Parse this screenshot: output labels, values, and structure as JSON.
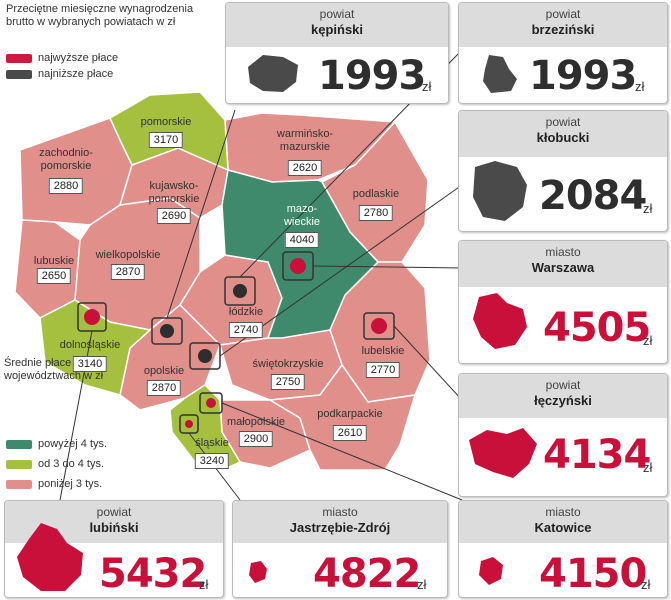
{
  "legend": {
    "title": "Przeciętne miesięczne wynagrodzenia brutto w wybranych powiatach w zł",
    "highest": "najwyższe płace",
    "lowest": "najniższe płace",
    "highest_color": "#d2183e",
    "lowest_color": "#4a4a4a"
  },
  "averages_legend": {
    "title": "Średnie płace w województwach w zł",
    "items": [
      {
        "label": "powyżej 4 tys.",
        "color": "#3f8a6c"
      },
      {
        "label": "od 3 do 4 tys.",
        "color": "#a5c03f"
      },
      {
        "label": "poniżej 3 tys.",
        "color": "#e08f8a"
      }
    ]
  },
  "voivodeships": [
    {
      "name": "pomorskie",
      "value": "3170"
    },
    {
      "name": "zachodnio-\npomorskie",
      "value": "2880"
    },
    {
      "name": "kujawsko-\npomorskie",
      "value": "2690"
    },
    {
      "name": "warmińsko-\nmazurskie",
      "value": "2620"
    },
    {
      "name": "podlaskie",
      "value": "2780"
    },
    {
      "name": "mazo-\nwieckie",
      "value": "4040"
    },
    {
      "name": "lubuskie",
      "value": "2650"
    },
    {
      "name": "wielkopolskie",
      "value": "2870"
    },
    {
      "name": "łódzkie",
      "value": "2740"
    },
    {
      "name": "dolnośląskie",
      "value": "3140"
    },
    {
      "name": "opolskie",
      "value": "2870"
    },
    {
      "name": "świętokrzyskie",
      "value": "2750"
    },
    {
      "name": "lubelskie",
      "value": "2770"
    },
    {
      "name": "małopolskie",
      "value": "2900"
    },
    {
      "name": "śląskie",
      "value": "3240"
    },
    {
      "name": "podkarpackie",
      "value": "2610"
    }
  ],
  "cards": [
    {
      "kind": "powiat",
      "name": "kępiński",
      "value": "1993",
      "unit": "zł",
      "color": "#2e2e2e"
    },
    {
      "kind": "powiat",
      "name": "brzeziński",
      "value": "1993",
      "unit": "zł",
      "color": "#2e2e2e"
    },
    {
      "kind": "powiat",
      "name": "kłobucki",
      "value": "2084",
      "unit": "zł",
      "color": "#2e2e2e"
    },
    {
      "kind": "miasto",
      "name": "Warszawa",
      "value": "4505",
      "unit": "zł",
      "color": "#c8103a"
    },
    {
      "kind": "powiat",
      "name": "łęczyński",
      "value": "4134",
      "unit": "zł",
      "color": "#c8103a"
    },
    {
      "kind": "powiat",
      "name": "lubiński",
      "value": "5432",
      "unit": "zł",
      "color": "#c8103a"
    },
    {
      "kind": "miasto",
      "name": "Jastrzębie-Zdrój",
      "value": "4822",
      "unit": "zł",
      "color": "#c8103a"
    },
    {
      "kind": "miasto",
      "name": "Katowice",
      "value": "4150",
      "unit": "zł",
      "color": "#c8103a"
    }
  ]
}
